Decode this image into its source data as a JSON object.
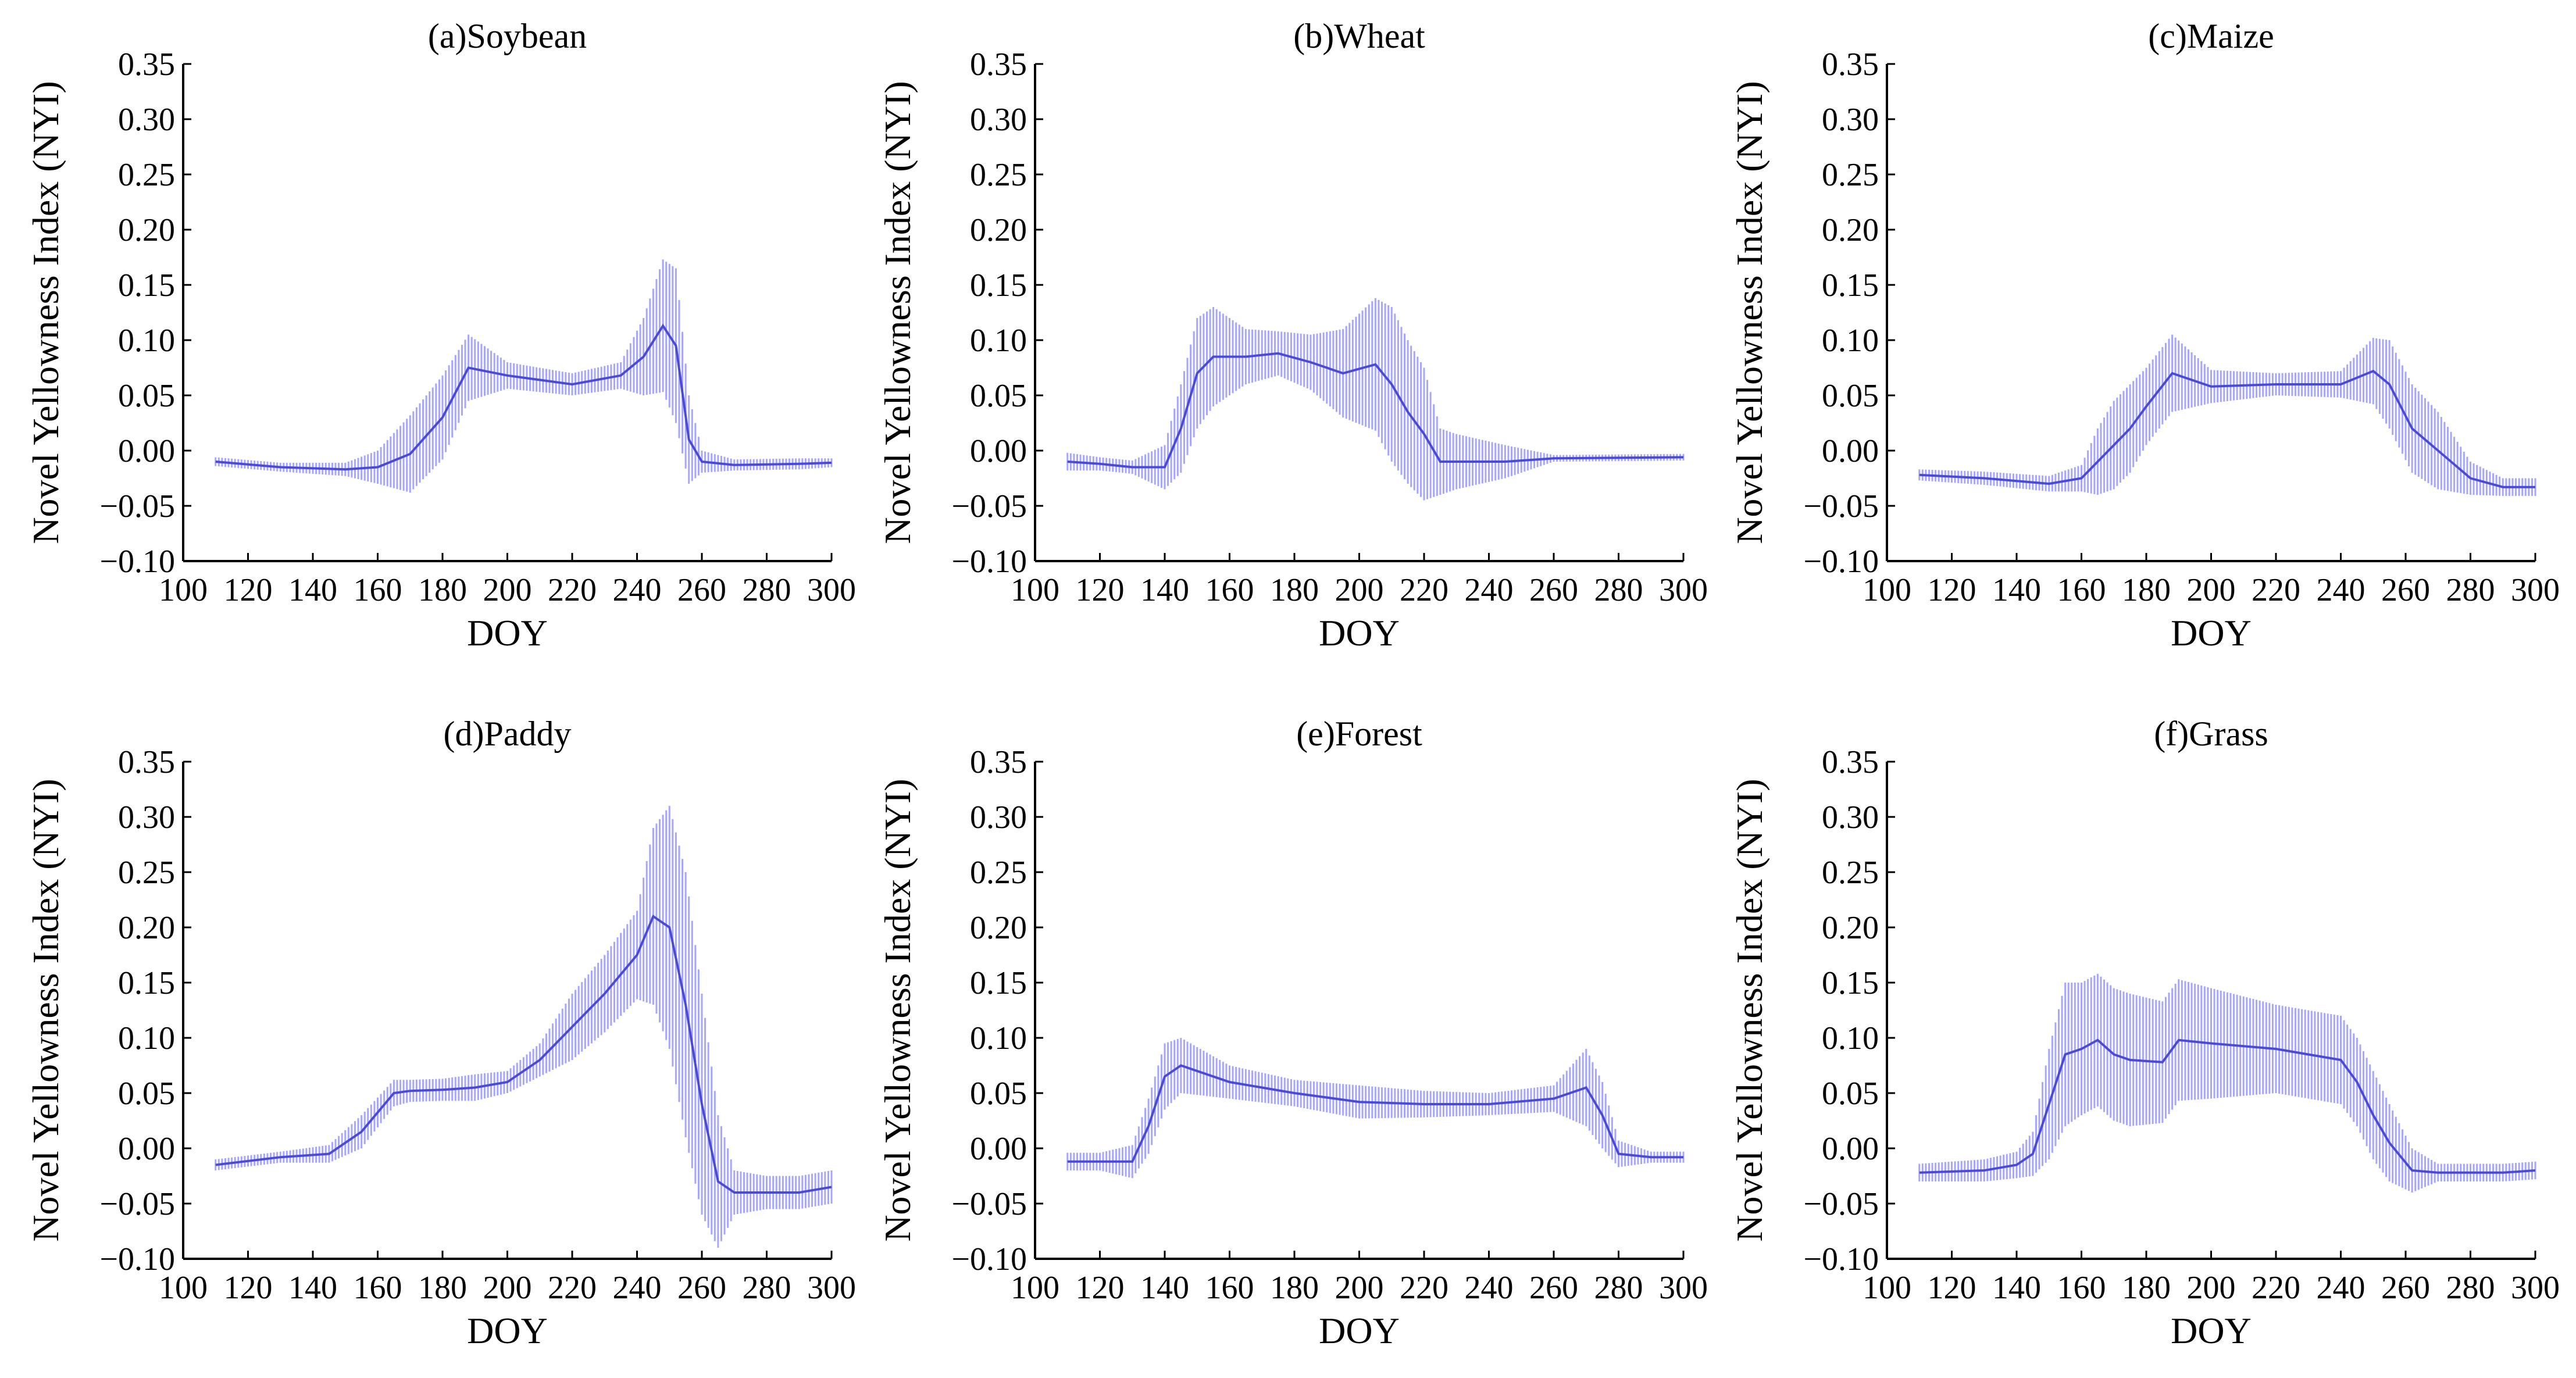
{
  "chart_data": [
    {
      "type": "line",
      "title": "(a)Soybean",
      "xlabel": "DOY",
      "ylabel": "Novel Yellowness Index (NYI)",
      "xlim": [
        100,
        300
      ],
      "ylim": [
        -0.1,
        0.35
      ],
      "xticks": [
        "100",
        "120",
        "140",
        "160",
        "180",
        "200",
        "220",
        "240",
        "260",
        "280",
        "300"
      ],
      "yticks": [
        "0.35",
        "0.30",
        "0.25",
        "0.20",
        "0.15",
        "0.10",
        "0.05",
        "0.00",
        "−0.05",
        "−0.10"
      ],
      "error_bars": true,
      "x": [
        110,
        130,
        150,
        160,
        170,
        180,
        188,
        200,
        220,
        235,
        242,
        248,
        252,
        256,
        260,
        270,
        290,
        300
      ],
      "mean": [
        -0.01,
        -0.015,
        -0.017,
        -0.015,
        -0.003,
        0.03,
        0.075,
        0.068,
        0.06,
        0.068,
        0.085,
        0.113,
        0.095,
        0.01,
        -0.01,
        -0.013,
        -0.012,
        -0.011
      ],
      "err": [
        0.004,
        0.004,
        0.006,
        0.015,
        0.035,
        0.038,
        0.03,
        0.012,
        0.01,
        0.012,
        0.035,
        0.06,
        0.07,
        0.04,
        0.01,
        0.005,
        0.005,
        0.004
      ]
    },
    {
      "type": "line",
      "title": "(b)Wheat",
      "xlabel": "DOY",
      "ylabel": "Novel Yellowness Index (NYI)",
      "xlim": [
        100,
        300
      ],
      "ylim": [
        -0.1,
        0.35
      ],
      "xticks": [
        "100",
        "120",
        "140",
        "160",
        "180",
        "200",
        "220",
        "240",
        "260",
        "280",
        "300"
      ],
      "yticks": [
        "0.35",
        "0.30",
        "0.25",
        "0.20",
        "0.15",
        "0.10",
        "0.05",
        "0.00",
        "−0.05",
        "−0.10"
      ],
      "error_bars": true,
      "x": [
        110,
        120,
        130,
        140,
        145,
        150,
        155,
        165,
        175,
        185,
        195,
        205,
        210,
        215,
        220,
        225,
        230,
        245,
        260,
        300
      ],
      "mean": [
        -0.01,
        -0.012,
        -0.015,
        -0.015,
        0.02,
        0.07,
        0.085,
        0.085,
        0.088,
        0.08,
        0.07,
        0.078,
        0.06,
        0.035,
        0.015,
        -0.01,
        -0.01,
        -0.01,
        -0.007,
        -0.006
      ],
      "err": [
        0.008,
        0.006,
        0.006,
        0.02,
        0.04,
        0.05,
        0.045,
        0.025,
        0.02,
        0.025,
        0.04,
        0.06,
        0.07,
        0.065,
        0.06,
        0.03,
        0.025,
        0.015,
        0.003,
        0.003
      ]
    },
    {
      "type": "line",
      "title": "(c)Maize",
      "xlabel": "DOY",
      "ylabel": "Novel Yellowness Index (NYI)",
      "xlim": [
        100,
        300
      ],
      "ylim": [
        -0.1,
        0.35
      ],
      "xticks": [
        "100",
        "120",
        "140",
        "160",
        "180",
        "200",
        "220",
        "240",
        "260",
        "280",
        "300"
      ],
      "yticks": [
        "0.35",
        "0.30",
        "0.25",
        "0.20",
        "0.15",
        "0.10",
        "0.05",
        "0.00",
        "−0.05",
        "−0.10"
      ],
      "error_bars": true,
      "x": [
        110,
        130,
        150,
        160,
        165,
        170,
        175,
        180,
        188,
        200,
        220,
        240,
        250,
        255,
        262,
        270,
        280,
        290,
        300
      ],
      "mean": [
        -0.022,
        -0.025,
        -0.03,
        -0.025,
        -0.01,
        0.005,
        0.02,
        0.04,
        0.07,
        0.058,
        0.06,
        0.06,
        0.072,
        0.06,
        0.02,
        0.0,
        -0.025,
        -0.033,
        -0.033
      ],
      "err": [
        0.005,
        0.006,
        0.007,
        0.012,
        0.03,
        0.04,
        0.04,
        0.035,
        0.035,
        0.015,
        0.01,
        0.012,
        0.03,
        0.04,
        0.04,
        0.035,
        0.015,
        0.008,
        0.008
      ]
    },
    {
      "type": "line",
      "title": "(d)Paddy",
      "xlabel": "DOY",
      "ylabel": "Novel Yellowness Index (NYI)",
      "xlim": [
        100,
        300
      ],
      "ylim": [
        -0.1,
        0.35
      ],
      "xticks": [
        "100",
        "120",
        "140",
        "160",
        "180",
        "200",
        "220",
        "240",
        "260",
        "280",
        "300"
      ],
      "yticks": [
        "0.35",
        "0.30",
        "0.25",
        "0.20",
        "0.15",
        "0.10",
        "0.05",
        "0.00",
        "−0.05",
        "−0.10"
      ],
      "error_bars": true,
      "x": [
        110,
        130,
        145,
        155,
        165,
        170,
        180,
        190,
        200,
        210,
        220,
        230,
        240,
        245,
        250,
        255,
        260,
        265,
        270,
        280,
        290,
        300
      ],
      "mean": [
        -0.015,
        -0.008,
        -0.005,
        0.015,
        0.05,
        0.052,
        0.053,
        0.055,
        0.06,
        0.08,
        0.11,
        0.14,
        0.175,
        0.21,
        0.2,
        0.13,
        0.04,
        -0.03,
        -0.04,
        -0.04,
        -0.04,
        -0.035
      ],
      "err": [
        0.005,
        0.005,
        0.008,
        0.015,
        0.012,
        0.01,
        0.01,
        0.012,
        0.01,
        0.015,
        0.03,
        0.035,
        0.04,
        0.08,
        0.11,
        0.12,
        0.1,
        0.06,
        0.02,
        0.015,
        0.015,
        0.015
      ]
    },
    {
      "type": "line",
      "title": "(e)Forest",
      "xlabel": "DOY",
      "ylabel": "Novel Yellowness Index (NYI)",
      "xlim": [
        100,
        300
      ],
      "ylim": [
        -0.1,
        0.35
      ],
      "xticks": [
        "100",
        "120",
        "140",
        "160",
        "180",
        "200",
        "220",
        "240",
        "260",
        "280",
        "300"
      ],
      "yticks": [
        "0.35",
        "0.30",
        "0.25",
        "0.20",
        "0.15",
        "0.10",
        "0.05",
        "0.00",
        "−0.05",
        "−0.10"
      ],
      "error_bars": true,
      "x": [
        110,
        120,
        130,
        135,
        140,
        145,
        160,
        180,
        200,
        220,
        240,
        260,
        270,
        275,
        280,
        290,
        300
      ],
      "mean": [
        -0.012,
        -0.012,
        -0.012,
        0.02,
        0.065,
        0.075,
        0.06,
        0.05,
        0.042,
        0.04,
        0.04,
        0.045,
        0.055,
        0.03,
        -0.005,
        -0.008,
        -0.008
      ],
      "err": [
        0.008,
        0.008,
        0.015,
        0.025,
        0.03,
        0.025,
        0.015,
        0.012,
        0.015,
        0.012,
        0.01,
        0.012,
        0.035,
        0.03,
        0.012,
        0.005,
        0.005
      ]
    },
    {
      "type": "line",
      "title": "(f)Grass",
      "xlabel": "DOY",
      "ylabel": "Novel Yellowness Index (NYI)",
      "xlim": [
        100,
        300
      ],
      "ylim": [
        -0.1,
        0.35
      ],
      "xticks": [
        "100",
        "120",
        "140",
        "160",
        "180",
        "200",
        "220",
        "240",
        "260",
        "280",
        "300"
      ],
      "yticks": [
        "0.35",
        "0.30",
        "0.25",
        "0.20",
        "0.15",
        "0.10",
        "0.05",
        "0.00",
        "−0.05",
        "−0.10"
      ],
      "error_bars": true,
      "x": [
        110,
        130,
        140,
        145,
        150,
        155,
        160,
        165,
        170,
        175,
        185,
        190,
        200,
        220,
        240,
        245,
        250,
        255,
        262,
        270,
        290,
        300
      ],
      "mean": [
        -0.022,
        -0.02,
        -0.015,
        -0.005,
        0.04,
        0.085,
        0.09,
        0.098,
        0.085,
        0.08,
        0.078,
        0.098,
        0.095,
        0.09,
        0.08,
        0.06,
        0.03,
        0.005,
        -0.02,
        -0.022,
        -0.022,
        -0.02
      ],
      "err": [
        0.008,
        0.01,
        0.012,
        0.02,
        0.05,
        0.065,
        0.06,
        0.06,
        0.06,
        0.06,
        0.055,
        0.055,
        0.05,
        0.04,
        0.04,
        0.04,
        0.04,
        0.035,
        0.02,
        0.008,
        0.008,
        0.008
      ]
    }
  ]
}
